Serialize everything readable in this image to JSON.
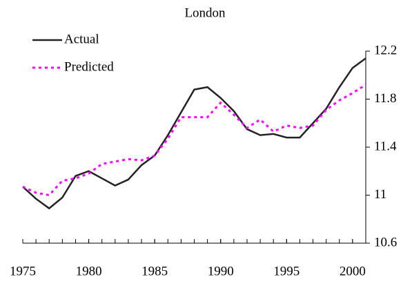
{
  "chart_data": {
    "type": "line",
    "title": "London",
    "x": [
      1975,
      1976,
      1977,
      1978,
      1979,
      1980,
      1981,
      1982,
      1983,
      1984,
      1985,
      1986,
      1987,
      1988,
      1989,
      1990,
      1991,
      1992,
      1993,
      1994,
      1995,
      1996,
      1997,
      1998,
      1999,
      2000,
      2001
    ],
    "series": [
      {
        "name": "Actual",
        "color": "#222222",
        "style": "solid",
        "values": [
          11.07,
          10.97,
          10.89,
          10.98,
          11.16,
          11.2,
          11.14,
          11.08,
          11.13,
          11.25,
          11.33,
          11.5,
          11.69,
          11.88,
          11.9,
          11.81,
          11.7,
          11.55,
          11.5,
          11.51,
          11.48,
          11.48,
          11.6,
          11.72,
          11.9,
          12.06,
          12.14
        ]
      },
      {
        "name": "Predicted",
        "color": "#ff00ff",
        "style": "dotted",
        "values": [
          11.07,
          11.02,
          11.0,
          11.12,
          11.14,
          11.18,
          11.26,
          11.28,
          11.3,
          11.29,
          11.33,
          11.47,
          11.65,
          11.65,
          11.65,
          11.77,
          11.67,
          11.56,
          11.63,
          11.53,
          11.58,
          11.56,
          11.58,
          11.71,
          11.79,
          11.85,
          11.92
        ]
      }
    ],
    "xlim": [
      1975,
      2001
    ],
    "xticks": [
      1975,
      1980,
      1985,
      1990,
      1995,
      2000
    ],
    "ylim": [
      10.6,
      12.2
    ],
    "yticks": [
      10.6,
      11,
      11.4,
      11.8,
      12.2
    ],
    "legend": "top-left"
  }
}
